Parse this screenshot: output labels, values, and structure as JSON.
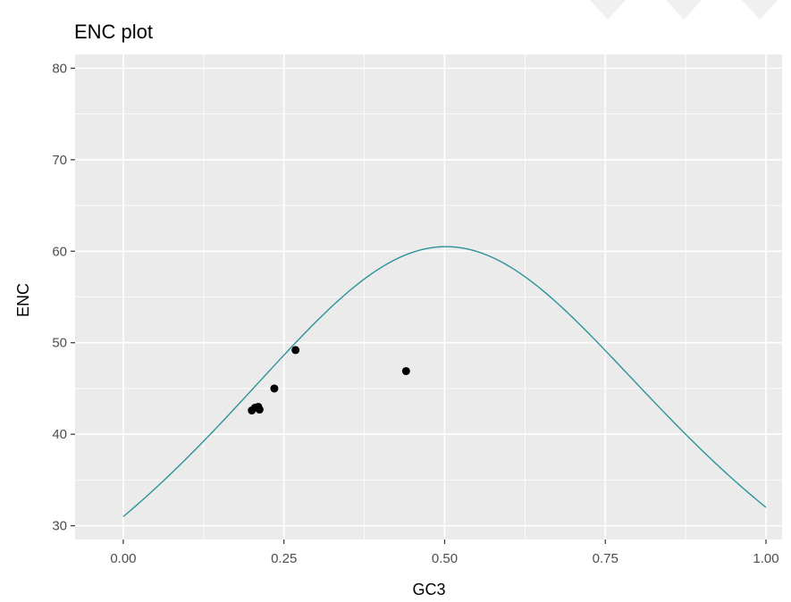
{
  "chart_data": {
    "type": "scatter",
    "title": "ENC plot",
    "xlabel": "GC3",
    "ylabel": "ENC",
    "xlim": [
      -0.075,
      1.025
    ],
    "ylim": [
      28.5,
      81.5
    ],
    "x_ticks": [
      0.0,
      0.25,
      0.5,
      0.75,
      1.0
    ],
    "x_tick_labels": [
      "0.00",
      "0.25",
      "0.50",
      "0.75",
      "1.00"
    ],
    "y_ticks": [
      30,
      40,
      50,
      60,
      70,
      80
    ],
    "y_tick_labels": [
      "30",
      "40",
      "50",
      "60",
      "70",
      "80"
    ],
    "grid": true,
    "panel_background": "#ebebeb",
    "grid_color": "#ffffff",
    "series": [
      {
        "kind": "points",
        "color": "#000000",
        "points": [
          {
            "x": 0.2,
            "y": 42.6
          },
          {
            "x": 0.205,
            "y": 42.9
          },
          {
            "x": 0.21,
            "y": 43.0
          },
          {
            "x": 0.212,
            "y": 42.7
          },
          {
            "x": 0.235,
            "y": 45.0
          },
          {
            "x": 0.268,
            "y": 49.2
          },
          {
            "x": 0.44,
            "y": 46.9
          }
        ]
      },
      {
        "kind": "curve",
        "color": "#2b9399",
        "formula": "2 + s + 29/(s^2 + (1-s)^2)",
        "x_range": [
          0,
          1
        ]
      }
    ]
  }
}
